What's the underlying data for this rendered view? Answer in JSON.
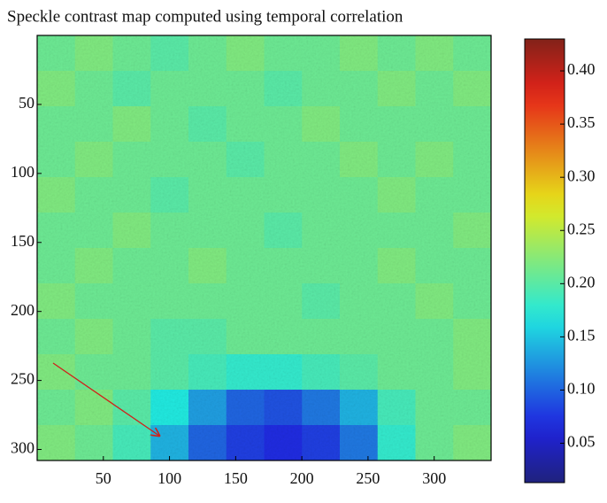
{
  "chart_data": {
    "type": "heatmap",
    "title": "Speckle contrast map computed using temporal correlation",
    "colormap": "jet",
    "xlim": [
      0,
      343
    ],
    "ylim": [
      0,
      308
    ],
    "y_inverted": true,
    "xticks": [
      50,
      100,
      150,
      200,
      250,
      300
    ],
    "yticks": [
      50,
      100,
      150,
      200,
      250,
      300
    ],
    "clim": [
      0.013,
      0.43
    ],
    "cticks": [
      0.05,
      {
        "value": 0.1,
        "label": "0.10"
      },
      0.15,
      {
        "value": 0.2,
        "label": "0.20"
      },
      0.25,
      {
        "value": 0.3,
        "label": "0.30"
      },
      0.35,
      {
        "value": 0.4,
        "label": "0.40"
      }
    ],
    "z": [
      [
        0.21,
        0.22,
        0.21,
        0.2,
        0.21,
        0.22,
        0.21,
        0.21,
        0.22,
        0.21,
        0.22,
        0.21
      ],
      [
        0.22,
        0.21,
        0.2,
        0.21,
        0.21,
        0.21,
        0.2,
        0.21,
        0.21,
        0.22,
        0.21,
        0.22
      ],
      [
        0.21,
        0.21,
        0.22,
        0.21,
        0.2,
        0.21,
        0.21,
        0.22,
        0.21,
        0.21,
        0.21,
        0.21
      ],
      [
        0.21,
        0.22,
        0.21,
        0.21,
        0.21,
        0.2,
        0.21,
        0.21,
        0.22,
        0.21,
        0.22,
        0.21
      ],
      [
        0.22,
        0.21,
        0.21,
        0.2,
        0.21,
        0.21,
        0.21,
        0.21,
        0.21,
        0.22,
        0.21,
        0.21
      ],
      [
        0.21,
        0.21,
        0.22,
        0.21,
        0.21,
        0.21,
        0.2,
        0.21,
        0.21,
        0.21,
        0.21,
        0.22
      ],
      [
        0.21,
        0.22,
        0.21,
        0.21,
        0.22,
        0.21,
        0.21,
        0.21,
        0.21,
        0.22,
        0.21,
        0.21
      ],
      [
        0.22,
        0.21,
        0.21,
        0.21,
        0.21,
        0.21,
        0.21,
        0.2,
        0.21,
        0.21,
        0.22,
        0.21
      ],
      [
        0.21,
        0.22,
        0.21,
        0.2,
        0.2,
        0.21,
        0.21,
        0.21,
        0.21,
        0.21,
        0.21,
        0.22
      ],
      [
        0.22,
        0.21,
        0.21,
        0.2,
        0.19,
        0.18,
        0.18,
        0.19,
        0.2,
        0.21,
        0.21,
        0.22
      ],
      [
        0.21,
        0.22,
        0.2,
        0.17,
        0.13,
        0.1,
        0.09,
        0.11,
        0.14,
        0.19,
        0.21,
        0.21
      ],
      [
        0.22,
        0.21,
        0.19,
        0.14,
        0.1,
        0.08,
        0.07,
        0.08,
        0.11,
        0.18,
        0.21,
        0.22
      ]
    ]
  }
}
